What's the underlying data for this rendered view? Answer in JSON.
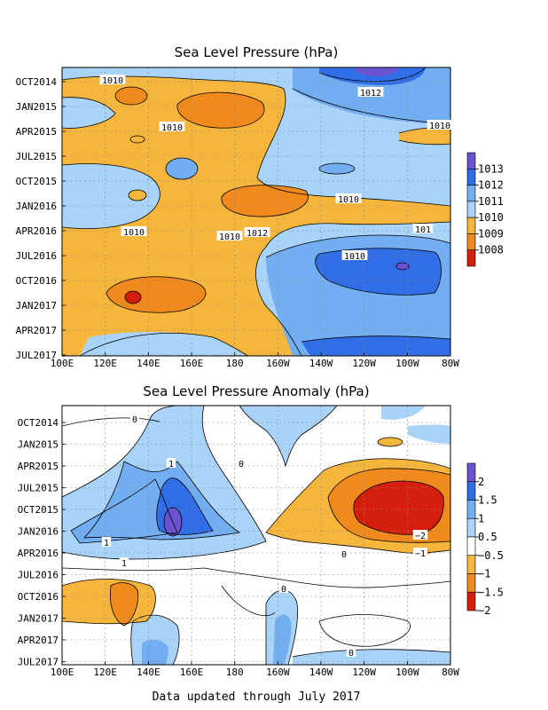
{
  "footer": "Data updated through July 2017",
  "chart_data": [
    {
      "type": "heatmap",
      "title": "Sea Level Pressure (hPa)",
      "x_ticks": [
        "100E",
        "120E",
        "140E",
        "160E",
        "180",
        "160W",
        "140W",
        "120W",
        "100W",
        "80W"
      ],
      "y_ticks": [
        "OCT2014",
        "JAN2015",
        "APR2015",
        "JUL2015",
        "OCT2015",
        "JAN2016",
        "APR2016",
        "JUL2016",
        "OCT2016",
        "JAN2017",
        "APR2017",
        "JUL2017"
      ],
      "colorbar": {
        "levels": [
          "1013",
          "1012",
          "1011",
          "1010",
          "1009",
          "1008"
        ],
        "colors": [
          "#6a52d0",
          "#2f6ee6",
          "#74aef2",
          "#a9d3f8",
          "#f6b63c",
          "#f08a1c",
          "#d61e0c"
        ]
      },
      "contour_labels": [
        "1010",
        "1012",
        "1010",
        "1010",
        "1010",
        "1010",
        "1010",
        "1012",
        "101",
        "1010"
      ],
      "grid": true
    },
    {
      "type": "heatmap",
      "title": "Sea Level Pressure Anomaly (hPa)",
      "x_ticks": [
        "100E",
        "120E",
        "140E",
        "160E",
        "180",
        "160W",
        "140W",
        "120W",
        "100W",
        "80W"
      ],
      "y_ticks": [
        "OCT2014",
        "JAN2015",
        "APR2015",
        "JUL2015",
        "OCT2015",
        "JAN2016",
        "APR2016",
        "JUL2016",
        "OCT2016",
        "JAN2017",
        "APR2017",
        "JUL2017"
      ],
      "colorbar": {
        "levels": [
          "2",
          "1.5",
          "1",
          "0.5",
          "−0.5",
          "−1",
          "−1.5",
          "−2"
        ],
        "colors": [
          "#6a52d0",
          "#2f6ee6",
          "#74aef2",
          "#a9d3f8",
          "#ffffff",
          "#f6b63c",
          "#f08a1c",
          "#d61e0c"
        ]
      },
      "contour_labels": [
        "0",
        "1",
        "0",
        "1",
        "0",
        "−2",
        "−1",
        "0",
        "1",
        "0"
      ],
      "grid": true
    }
  ]
}
